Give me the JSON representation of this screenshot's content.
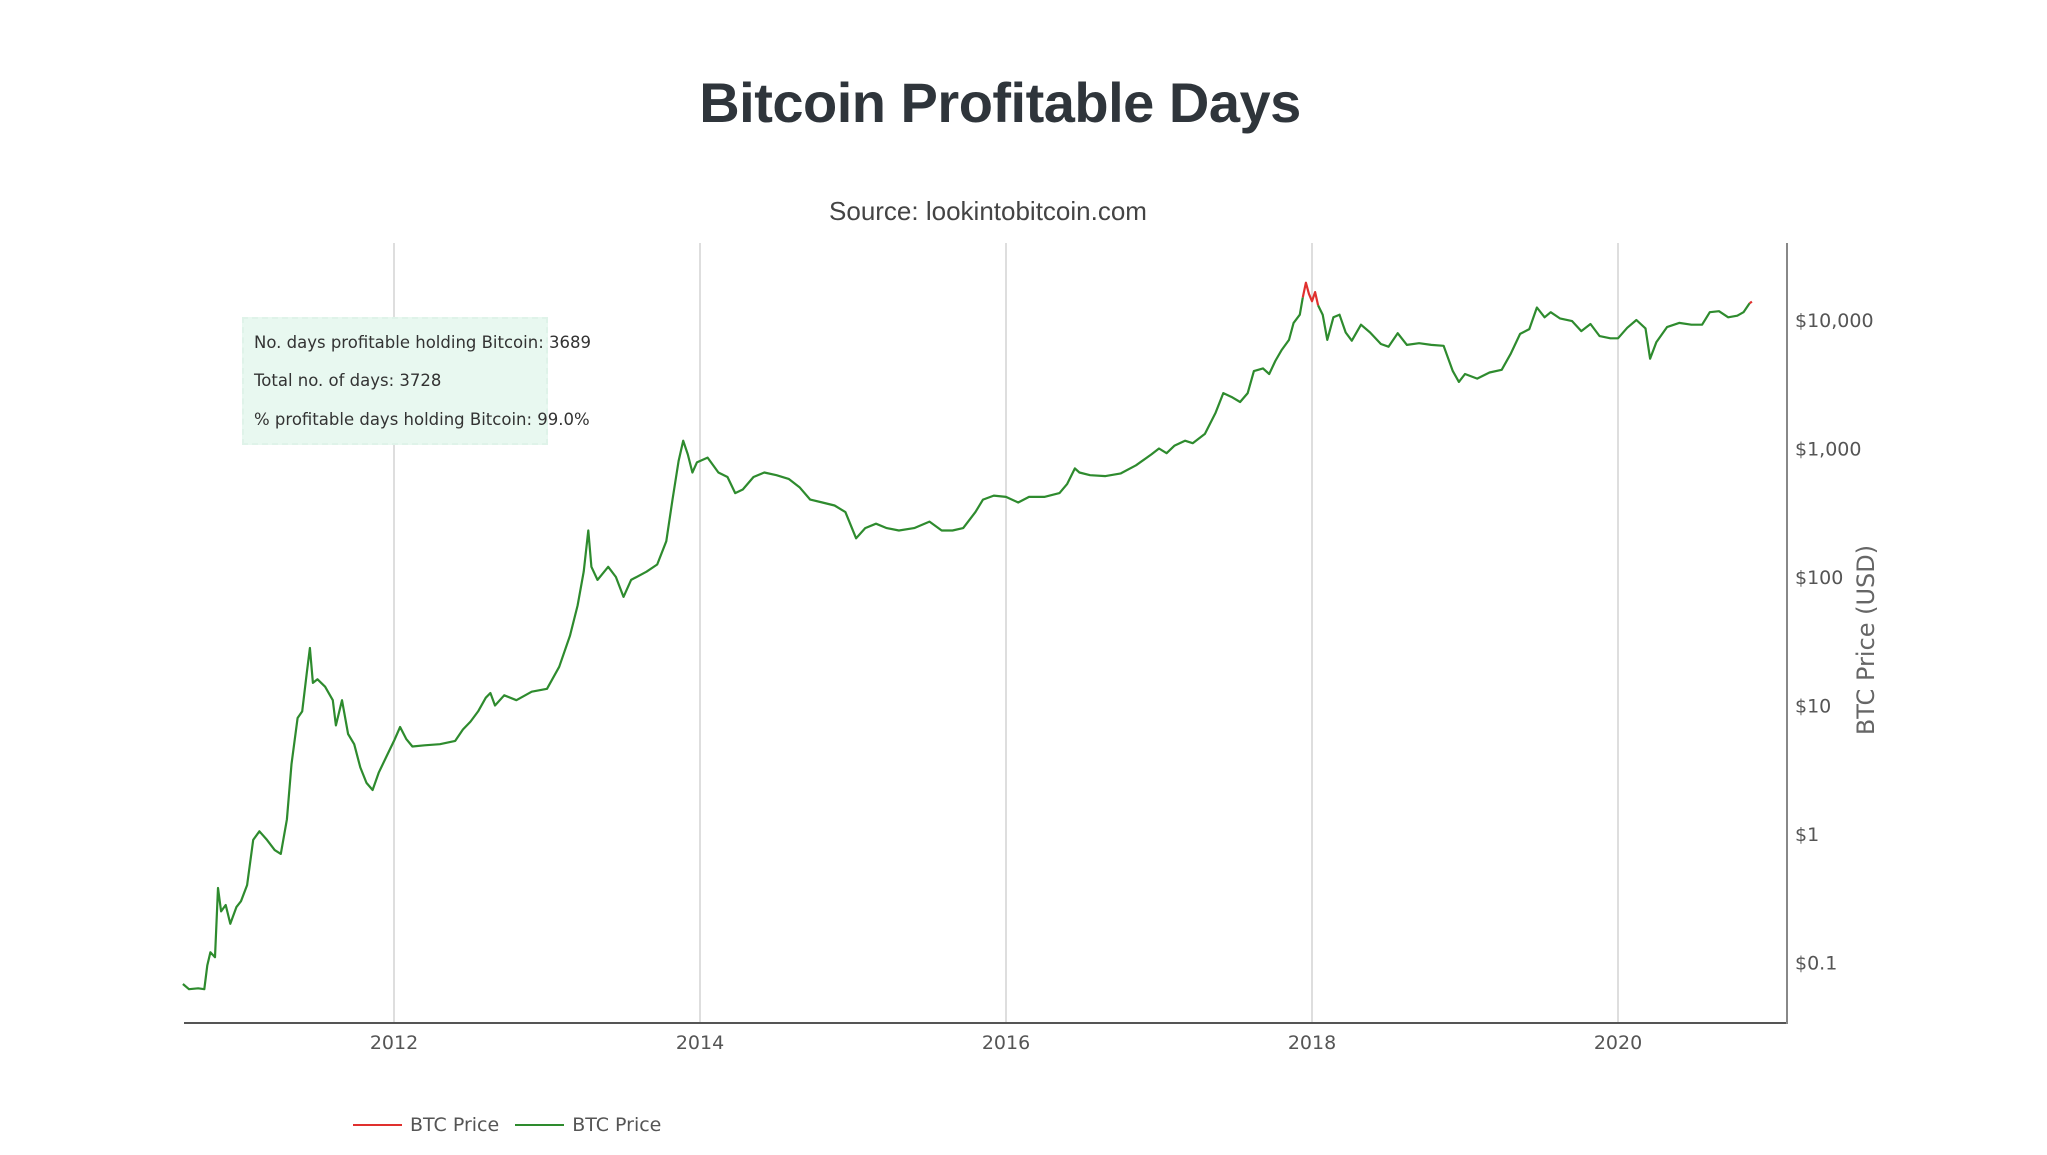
{
  "header": {
    "title": "Bitcoin Profitable Days",
    "subtitle": "Source: lookintobitcoin.com"
  },
  "annotation": {
    "lines": [
      "No. days profitable holding Bitcoin: 3689",
      "Total no. of days: 3728",
      "% profitable days holding Bitcoin: 99.0%"
    ],
    "background": "#e8f8f0"
  },
  "colors": {
    "profitable": "#2e8b2e",
    "unprofitable": "#e0302e",
    "grid": "#d3d3d3",
    "axis": "#555555"
  },
  "chart_data": {
    "type": "line",
    "title": "Bitcoin Profitable Days",
    "subtitle": "Source: lookintobitcoin.com",
    "xlabel": "",
    "ylabel": "BTC Price (USD)",
    "y_scale": "log",
    "y_side": "right",
    "xlim": [
      2010.6,
      2020.9
    ],
    "ylim": [
      0.034,
      40000
    ],
    "x_ticks": [
      2012,
      2014,
      2016,
      2018,
      2020
    ],
    "x_tick_labels": [
      "2012",
      "2014",
      "2016",
      "2018",
      "2020"
    ],
    "y_ticks": [
      0.1,
      1,
      10,
      100,
      1000,
      10000
    ],
    "y_tick_labels": [
      "$0.1",
      "$1",
      "$10",
      "$100",
      "$1,000",
      "$10,000"
    ],
    "grid": {
      "x": true,
      "y": false
    },
    "legend": {
      "placement": "bottom-left",
      "entries": [
        "BTC Price",
        "BTC Price"
      ]
    },
    "series": [
      {
        "name": "BTC Price",
        "color": "#2e8b2e",
        "role": "profitable days",
        "points": [
          [
            2010.62,
            0.068
          ],
          [
            2010.66,
            0.062
          ],
          [
            2010.72,
            0.063
          ],
          [
            2010.76,
            0.062
          ],
          [
            2010.78,
            0.095
          ],
          [
            2010.8,
            0.12
          ],
          [
            2010.83,
            0.11
          ],
          [
            2010.85,
            0.38
          ],
          [
            2010.87,
            0.25
          ],
          [
            2010.9,
            0.28
          ],
          [
            2010.93,
            0.2
          ],
          [
            2010.97,
            0.27
          ],
          [
            2011.0,
            0.3
          ],
          [
            2011.04,
            0.4
          ],
          [
            2011.08,
            0.9
          ],
          [
            2011.12,
            1.05
          ],
          [
            2011.17,
            0.9
          ],
          [
            2011.22,
            0.75
          ],
          [
            2011.26,
            0.7
          ],
          [
            2011.3,
            1.3
          ],
          [
            2011.33,
            3.5
          ],
          [
            2011.37,
            8
          ],
          [
            2011.4,
            9
          ],
          [
            2011.43,
            18
          ],
          [
            2011.45,
            28
          ],
          [
            2011.47,
            15
          ],
          [
            2011.5,
            16
          ],
          [
            2011.55,
            14
          ],
          [
            2011.6,
            11
          ],
          [
            2011.62,
            7
          ],
          [
            2011.66,
            11
          ],
          [
            2011.7,
            6
          ],
          [
            2011.74,
            5
          ],
          [
            2011.78,
            3.3
          ],
          [
            2011.82,
            2.5
          ],
          [
            2011.86,
            2.2
          ],
          [
            2011.9,
            3
          ],
          [
            2011.95,
            4
          ],
          [
            2012.0,
            5.3
          ],
          [
            2012.04,
            6.8
          ],
          [
            2012.08,
            5.5
          ],
          [
            2012.12,
            4.8
          ],
          [
            2012.2,
            4.9
          ],
          [
            2012.3,
            5.0
          ],
          [
            2012.4,
            5.3
          ],
          [
            2012.45,
            6.5
          ],
          [
            2012.5,
            7.5
          ],
          [
            2012.55,
            9
          ],
          [
            2012.6,
            11.5
          ],
          [
            2012.63,
            12.5
          ],
          [
            2012.66,
            10
          ],
          [
            2012.72,
            12
          ],
          [
            2012.8,
            11
          ],
          [
            2012.9,
            12.8
          ],
          [
            2013.0,
            13.5
          ],
          [
            2013.08,
            20
          ],
          [
            2013.15,
            35
          ],
          [
            2013.2,
            60
          ],
          [
            2013.24,
            110
          ],
          [
            2013.27,
            230
          ],
          [
            2013.29,
            120
          ],
          [
            2013.33,
            95
          ],
          [
            2013.4,
            120
          ],
          [
            2013.45,
            100
          ],
          [
            2013.5,
            70
          ],
          [
            2013.55,
            95
          ],
          [
            2013.65,
            110
          ],
          [
            2013.72,
            125
          ],
          [
            2013.78,
            190
          ],
          [
            2013.82,
            400
          ],
          [
            2013.86,
            800
          ],
          [
            2013.89,
            1150
          ],
          [
            2013.92,
            900
          ],
          [
            2013.95,
            650
          ],
          [
            2013.98,
            780
          ],
          [
            2014.05,
            850
          ],
          [
            2014.12,
            650
          ],
          [
            2014.18,
            600
          ],
          [
            2014.23,
            450
          ],
          [
            2014.28,
            480
          ],
          [
            2014.35,
            600
          ],
          [
            2014.42,
            650
          ],
          [
            2014.5,
            620
          ],
          [
            2014.58,
            580
          ],
          [
            2014.65,
            500
          ],
          [
            2014.72,
            400
          ],
          [
            2014.8,
            380
          ],
          [
            2014.88,
            360
          ],
          [
            2014.95,
            320
          ],
          [
            2015.02,
            200
          ],
          [
            2015.08,
            240
          ],
          [
            2015.15,
            260
          ],
          [
            2015.22,
            240
          ],
          [
            2015.3,
            230
          ],
          [
            2015.4,
            240
          ],
          [
            2015.5,
            270
          ],
          [
            2015.58,
            230
          ],
          [
            2015.65,
            230
          ],
          [
            2015.72,
            240
          ],
          [
            2015.8,
            320
          ],
          [
            2015.85,
            400
          ],
          [
            2015.92,
            430
          ],
          [
            2016.0,
            420
          ],
          [
            2016.08,
            380
          ],
          [
            2016.15,
            420
          ],
          [
            2016.25,
            420
          ],
          [
            2016.35,
            450
          ],
          [
            2016.4,
            530
          ],
          [
            2016.45,
            700
          ],
          [
            2016.48,
            650
          ],
          [
            2016.55,
            620
          ],
          [
            2016.65,
            610
          ],
          [
            2016.75,
            640
          ],
          [
            2016.85,
            740
          ],
          [
            2016.95,
            900
          ],
          [
            2017.0,
            1000
          ],
          [
            2017.05,
            920
          ],
          [
            2017.1,
            1050
          ],
          [
            2017.17,
            1150
          ],
          [
            2017.22,
            1100
          ],
          [
            2017.3,
            1300
          ],
          [
            2017.37,
            1900
          ],
          [
            2017.42,
            2700
          ],
          [
            2017.48,
            2500
          ],
          [
            2017.53,
            2300
          ],
          [
            2017.58,
            2700
          ],
          [
            2017.62,
            4000
          ],
          [
            2017.68,
            4200
          ],
          [
            2017.72,
            3800
          ],
          [
            2017.76,
            4800
          ],
          [
            2017.8,
            5800
          ],
          [
            2017.85,
            7000
          ],
          [
            2017.88,
            9500
          ],
          [
            2017.92,
            11000
          ],
          [
            2017.94,
            15000
          ]
        ]
      },
      {
        "name": "BTC Price",
        "color": "#e0302e",
        "role": "unprofitable days",
        "points": [
          [
            2017.94,
            15000
          ],
          [
            2017.96,
            19500
          ],
          [
            2017.98,
            16000
          ],
          [
            2018.0,
            14000
          ],
          [
            2018.02,
            16500
          ],
          [
            2018.04,
            13000
          ]
        ]
      },
      {
        "name": "BTC Price",
        "color": "#2e8b2e",
        "role": "profitable days",
        "points": [
          [
            2018.04,
            13000
          ],
          [
            2018.07,
            11000
          ],
          [
            2018.1,
            7000
          ],
          [
            2018.14,
            10500
          ],
          [
            2018.18,
            11000
          ],
          [
            2018.22,
            8000
          ],
          [
            2018.26,
            6900
          ],
          [
            2018.32,
            9200
          ],
          [
            2018.38,
            8000
          ],
          [
            2018.45,
            6500
          ],
          [
            2018.5,
            6200
          ],
          [
            2018.56,
            7900
          ],
          [
            2018.62,
            6400
          ],
          [
            2018.7,
            6600
          ],
          [
            2018.78,
            6400
          ],
          [
            2018.86,
            6300
          ],
          [
            2018.92,
            4000
          ],
          [
            2018.96,
            3300
          ],
          [
            2019.0,
            3800
          ],
          [
            2019.08,
            3500
          ],
          [
            2019.16,
            3900
          ],
          [
            2019.24,
            4100
          ],
          [
            2019.3,
            5500
          ],
          [
            2019.36,
            7800
          ],
          [
            2019.42,
            8500
          ],
          [
            2019.47,
            12500
          ],
          [
            2019.52,
            10500
          ],
          [
            2019.56,
            11500
          ],
          [
            2019.62,
            10300
          ],
          [
            2019.7,
            9800
          ],
          [
            2019.76,
            8200
          ],
          [
            2019.82,
            9300
          ],
          [
            2019.88,
            7500
          ],
          [
            2019.95,
            7200
          ],
          [
            2020.0,
            7200
          ],
          [
            2020.06,
            8700
          ],
          [
            2020.12,
            10000
          ],
          [
            2020.18,
            8600
          ],
          [
            2020.21,
            5000
          ],
          [
            2020.25,
            6700
          ],
          [
            2020.32,
            8800
          ],
          [
            2020.4,
            9500
          ],
          [
            2020.48,
            9200
          ],
          [
            2020.55,
            9200
          ],
          [
            2020.6,
            11500
          ],
          [
            2020.66,
            11700
          ],
          [
            2020.72,
            10500
          ],
          [
            2020.78,
            10800
          ],
          [
            2020.82,
            11500
          ],
          [
            2020.86,
            13500
          ]
        ]
      },
      {
        "name": "BTC Price",
        "color": "#e0302e",
        "role": "unprofitable days",
        "points": [
          [
            2020.86,
            13500
          ],
          [
            2020.875,
            13900
          ]
        ]
      }
    ]
  }
}
